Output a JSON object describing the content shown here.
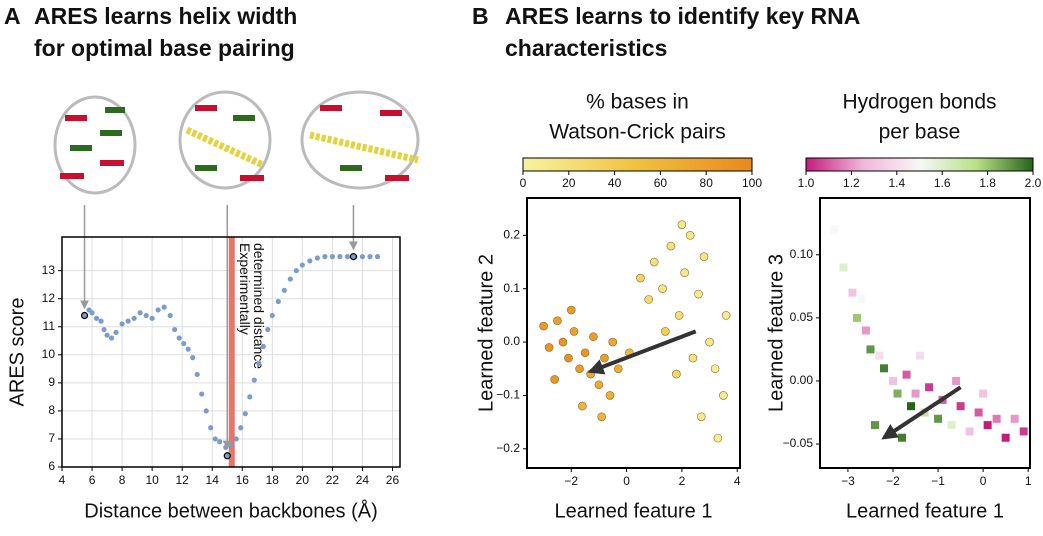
{
  "panels": [
    {
      "label": "A",
      "title": [
        "ARES learns helix width",
        "for optimal base pairing"
      ]
    },
    {
      "label": "B",
      "title": [
        "ARES learns to identify key RNA",
        "characteristics"
      ]
    }
  ],
  "chart_data": [
    {
      "type": "scatter",
      "marker": "circle",
      "color": "#7b9ccf",
      "xlabel": "Distance between backbones (Å)",
      "ylabel": "ARES score",
      "x": [
        5.8,
        6.0,
        6.3,
        6.6,
        6.8,
        7.0,
        7.3,
        7.6,
        8.0,
        8.4,
        8.8,
        9.2,
        9.6,
        10.0,
        10.4,
        10.8,
        11.2,
        11.5,
        11.8,
        12.1,
        12.4,
        12.7,
        13.0,
        13.3,
        13.6,
        13.9,
        14.2,
        14.5,
        14.9,
        15.2,
        15.6,
        15.9,
        16.2,
        16.5,
        16.8,
        17.1,
        17.4,
        17.7,
        18.0,
        18.4,
        18.8,
        19.2,
        19.6,
        20.0,
        20.5,
        21.0,
        21.5,
        22.0,
        22.5,
        23.0,
        23.5,
        24.0,
        24.5,
        25.0
      ],
      "y": [
        11.6,
        11.5,
        11.3,
        11.2,
        10.9,
        10.7,
        10.6,
        10.8,
        11.1,
        11.2,
        11.3,
        11.5,
        11.4,
        11.3,
        11.6,
        11.7,
        11.4,
        10.9,
        10.6,
        10.4,
        10.2,
        9.9,
        9.3,
        8.6,
        8.0,
        7.4,
        7.0,
        6.9,
        6.7,
        6.8,
        7.0,
        7.4,
        7.9,
        8.5,
        9.1,
        9.7,
        10.3,
        10.9,
        11.4,
        11.9,
        12.3,
        12.7,
        13.0,
        13.2,
        13.35,
        13.45,
        13.5,
        13.5,
        13.5,
        13.5,
        13.5,
        13.5,
        13.5,
        13.5
      ],
      "xlim": [
        4,
        26.5
      ],
      "ylim": [
        6,
        14.2
      ],
      "xticks": [
        4,
        6,
        8,
        10,
        12,
        14,
        16,
        18,
        20,
        22,
        24,
        26
      ],
      "yticks": [
        6,
        7,
        8,
        9,
        10,
        11,
        12,
        13
      ],
      "grid": true,
      "vline": {
        "x": 15.3,
        "color": "#e8756a",
        "label": [
          "Experimentally",
          "determined distance"
        ]
      },
      "highlight": {
        "x": [
          5.5,
          15.0,
          23.4
        ],
        "y": [
          11.4,
          6.4,
          13.5
        ]
      }
    },
    {
      "type": "scatter",
      "marker": "circle",
      "title": [
        "% bases in",
        "Watson-Crick pairs"
      ],
      "xlabel": "Learned feature 1",
      "ylabel": "Learned feature 2",
      "x": [
        -3,
        -2.8,
        -2.5,
        -2.3,
        -2.1,
        -1.9,
        -1.7,
        -1.5,
        -1.3,
        -1.2,
        -1.0,
        -0.8,
        -0.6,
        -0.5,
        -0.3,
        -1.6,
        -2.6,
        -0.9,
        0.1,
        -2.0,
        0.5,
        0.8,
        1.0,
        1.3,
        1.6,
        1.9,
        2.1,
        2.3,
        2.6,
        2.8,
        3.0,
        3.2,
        3.5,
        3.3,
        2.7,
        2.4,
        1.8,
        3.6,
        1.4,
        2.0
      ],
      "y": [
        0.03,
        -0.01,
        0.04,
        0.0,
        -0.03,
        0.02,
        -0.05,
        -0.02,
        -0.06,
        0.01,
        -0.08,
        -0.03,
        -0.1,
        0.0,
        -0.05,
        -0.12,
        -0.07,
        -0.14,
        -0.02,
        0.06,
        0.12,
        0.08,
        0.15,
        0.1,
        0.18,
        0.05,
        0.13,
        0.2,
        0.09,
        0.16,
        0.0,
        -0.05,
        -0.1,
        -0.18,
        -0.14,
        -0.03,
        -0.06,
        0.05,
        0.02,
        0.22
      ],
      "c": [
        85,
        90,
        80,
        88,
        92,
        78,
        85,
        90,
        75,
        82,
        70,
        80,
        65,
        72,
        68,
        60,
        87,
        62,
        55,
        83,
        30,
        25,
        20,
        15,
        18,
        22,
        10,
        12,
        8,
        14,
        10,
        6,
        5,
        4,
        9,
        16,
        28,
        7,
        35,
        11
      ],
      "colormap": [
        "#f7f3a0",
        "#f0c040",
        "#e8891c"
      ],
      "clim": [
        0,
        100
      ],
      "cticks": [
        0,
        20,
        40,
        60,
        80,
        100
      ],
      "xlim": [
        -3.6,
        4.1
      ],
      "ylim": [
        -0.236,
        0.27
      ],
      "xticks": [
        {
          "value": -2,
          "label": "−2"
        },
        0,
        2,
        4
      ],
      "yticks": [
        {
          "value": -0.2,
          "label": "−0.2"
        },
        {
          "value": -0.1,
          "label": "−0.1"
        },
        {
          "value": 0,
          "label": "0.0"
        },
        0.1,
        0.2
      ],
      "grid": false,
      "arrow": [
        2.5,
        0.02,
        -1.3,
        -0.055
      ]
    },
    {
      "type": "scatter",
      "marker": "square",
      "title": [
        "Hydrogen bonds",
        "per base"
      ],
      "xlabel": "Learned feature 1",
      "ylabel": "Learned feature 3",
      "x": [
        -3.3,
        -3.1,
        -2.9,
        -2.8,
        -2.6,
        -2.5,
        -2.3,
        -2.2,
        -2.0,
        -1.9,
        -1.7,
        -1.6,
        -1.5,
        -1.3,
        -1.2,
        -1.0,
        -0.9,
        -0.7,
        -0.5,
        -0.3,
        -0.1,
        0.1,
        0.3,
        0.5,
        0.7,
        0.9,
        -2.7,
        -1.8,
        -1.4,
        -0.6,
        -2.4,
        0.0
      ],
      "y": [
        0.12,
        0.09,
        0.07,
        0.05,
        0.04,
        0.025,
        0.02,
        0.01,
        0.0,
        -0.01,
        0.005,
        -0.02,
        -0.01,
        -0.025,
        -0.005,
        -0.03,
        -0.015,
        -0.035,
        -0.02,
        -0.04,
        -0.025,
        -0.035,
        -0.03,
        -0.045,
        -0.03,
        -0.04,
        0.065,
        -0.045,
        0.02,
        0.0,
        -0.035,
        -0.01
      ],
      "c": [
        1.5,
        1.6,
        1.3,
        1.8,
        1.2,
        1.9,
        1.4,
        1.95,
        1.3,
        1.85,
        1.1,
        2.0,
        1.2,
        1.7,
        1.05,
        1.9,
        1.1,
        1.6,
        1.05,
        1.3,
        1.1,
        1.0,
        1.15,
        1.0,
        1.2,
        1.05,
        1.5,
        1.95,
        1.4,
        1.2,
        1.9,
        1.3
      ],
      "colormap": [
        "#c51b7d",
        "#f1b6da",
        "#f7f7f7",
        "#b8e186",
        "#276419"
      ],
      "clim": [
        1,
        2
      ],
      "cticks": [
        {
          "value": 1,
          "label": "1.0"
        },
        1.2,
        1.4,
        1.6,
        1.8,
        {
          "value": 2,
          "label": "2.0"
        }
      ],
      "xlim": [
        -3.62,
        1.04
      ],
      "ylim": [
        -0.069,
        0.145
      ],
      "xticks": [
        {
          "value": -3,
          "label": "−3"
        },
        {
          "value": -2,
          "label": "−2"
        },
        {
          "value": -1,
          "label": "−1"
        },
        0,
        1
      ],
      "yticks": [
        {
          "value": -0.05,
          "label": "−0.05"
        },
        {
          "value": 0,
          "label": "0.00"
        },
        0.05,
        {
          "value": 0.1,
          "label": "0.10"
        }
      ],
      "grid": false,
      "arrow": [
        -0.5,
        -0.005,
        -2.2,
        -0.045
      ]
    }
  ]
}
